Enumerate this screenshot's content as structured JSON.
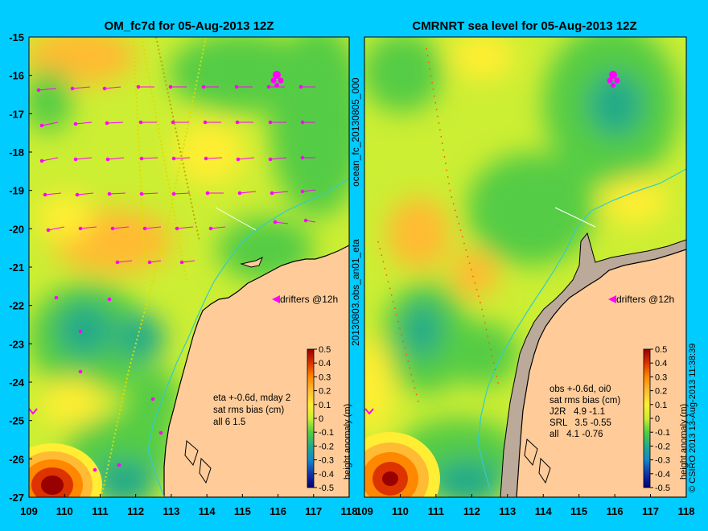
{
  "colors": {
    "background": "#00ccff",
    "land": "#ffcc99",
    "coast": "#000000",
    "shelf_line": "#33cccc",
    "drifter": "#ff00ff",
    "track": "#dddd00",
    "section_line": "#ffffff"
  },
  "chart_data": [
    {
      "type": "heatmap",
      "title": "OM_fc7d for 05-Aug-2013 12Z",
      "x_ticks": [
        "109",
        "110",
        "111",
        "112",
        "113",
        "114",
        "115",
        "116",
        "117",
        "118"
      ],
      "y_ticks": [
        "-15",
        "-16",
        "-17",
        "-18",
        "-19",
        "-20",
        "-21",
        "-22",
        "-23",
        "-24",
        "-25",
        "-26",
        "-27"
      ],
      "xlim": [
        109,
        118
      ],
      "ylim": [
        -27,
        -15
      ],
      "drifter_label": "drifters @12h",
      "stats": [
        "eta +-0.6d, mday 2",
        "sat rms bias (cm)",
        "all 6 1.5"
      ],
      "colorbar": {
        "label": "height anomaly (m)",
        "ticks": [
          "0.5",
          "0.4",
          "0.3",
          "0.2",
          "0.1",
          "0",
          "-0.1",
          "-0.2",
          "-0.3",
          "-0.4",
          "-0.5"
        ],
        "range": [
          -0.5,
          0.5
        ]
      },
      "side_label": "ocean_fc_20130805_000"
    },
    {
      "type": "heatmap",
      "title": "CMRNRT sea level  for 05-Aug-2013 12Z",
      "x_ticks": [
        "109",
        "110",
        "111",
        "112",
        "113",
        "114",
        "115",
        "116",
        "117",
        "118"
      ],
      "xlim": [
        109,
        118
      ],
      "ylim": [
        -27,
        -15
      ],
      "drifter_label": "drifters @12h",
      "stats": [
        "obs +-0.6d, oi0",
        "sat rms bias (cm)",
        "J2R   4.9 -1.1",
        "SRL   3.5 -0.55",
        "all   4.1 -0.76"
      ],
      "colorbar": {
        "label": "height anomaly (m)",
        "ticks": [
          "0.5",
          "0.4",
          "0.3",
          "0.2",
          "0.1",
          "0",
          "-0.1",
          "-0.2",
          "-0.3",
          "-0.4",
          "-0.5"
        ],
        "range": [
          -0.5,
          0.5
        ]
      },
      "side_label": "20130803.obs_an01_eta"
    }
  ],
  "credit": "© CSIRO 2013   13-Aug-2013 11:38:39"
}
